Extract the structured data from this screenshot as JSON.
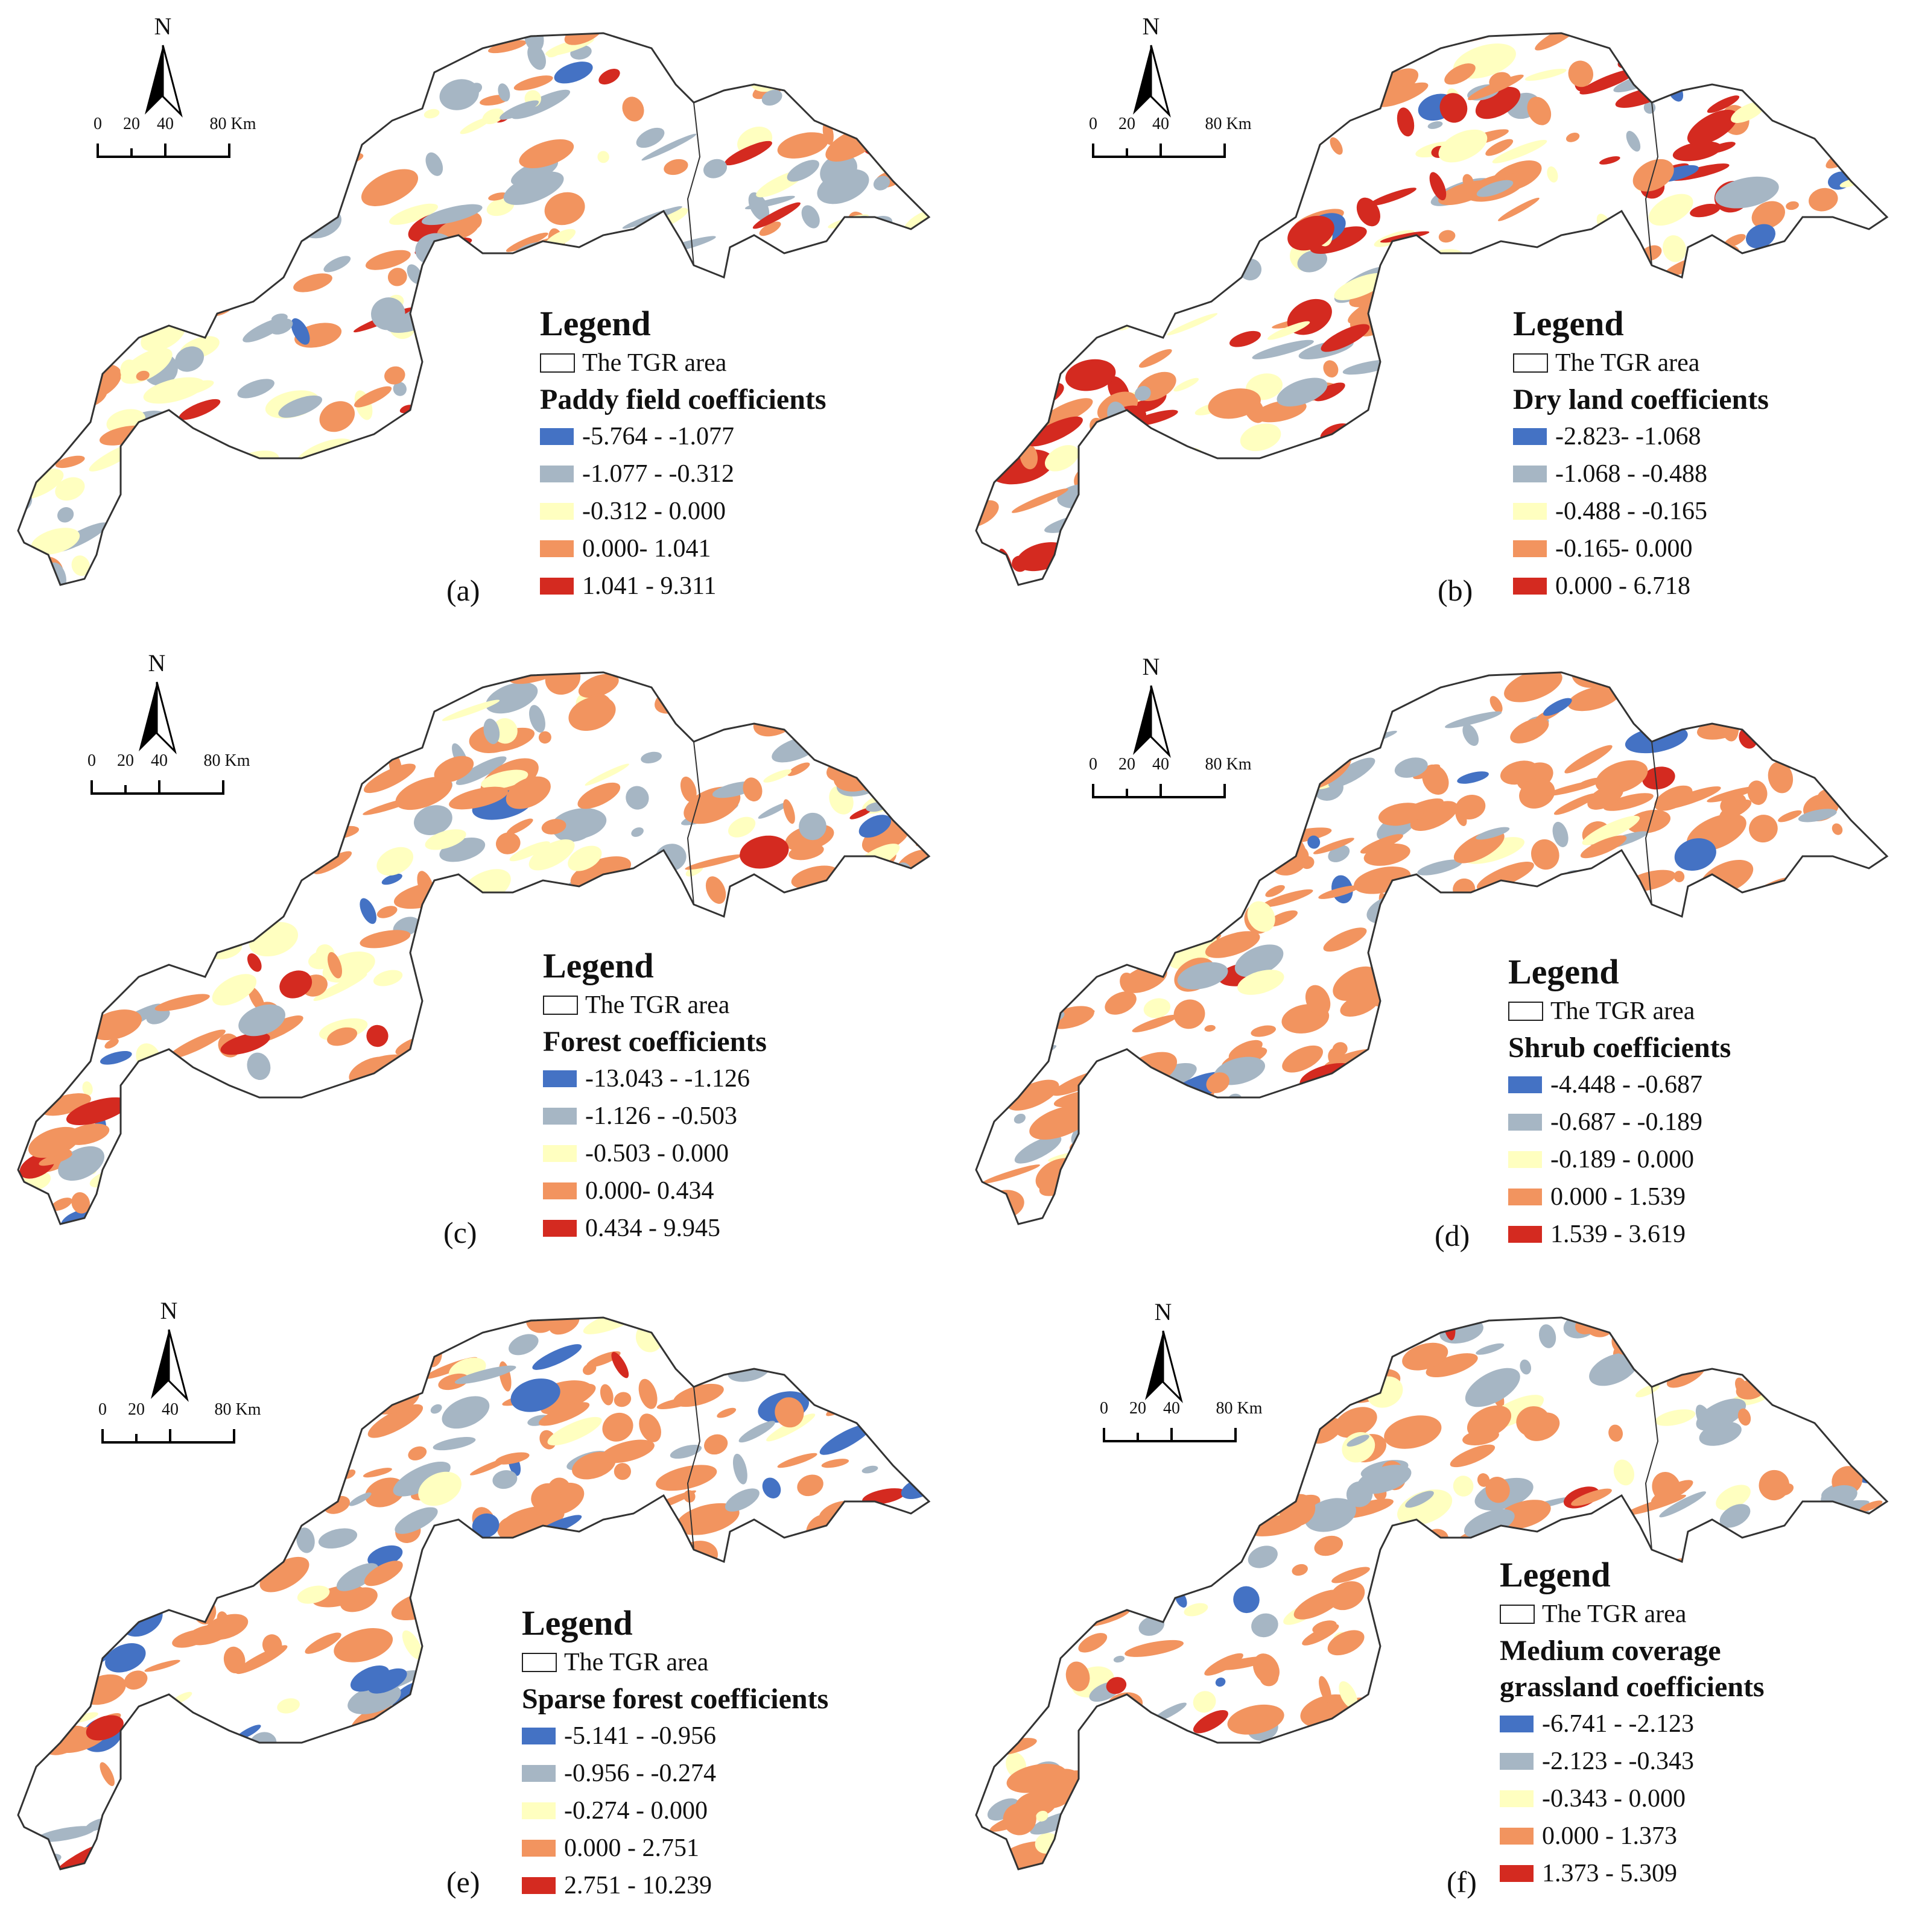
{
  "colors": {
    "class1": "#4472c4",
    "class2": "#a6b6c4",
    "class3": "#ffffc0",
    "class4": "#f2945f",
    "class5": "#d42a20",
    "boundary": "#333333"
  },
  "common": {
    "north_label": "N",
    "scale_ticks": [
      "0",
      "20",
      "40",
      "80 Km"
    ],
    "legend_title": "Legend",
    "tgr_label": "The TGR area"
  },
  "panels": [
    {
      "id": "a",
      "label": "(a)",
      "coef_title": "Paddy field coefficients",
      "classes": [
        "-5.764 - -1.077",
        "-1.077 - -0.312",
        "-0.312 - 0.000",
        "0.000- 1.041",
        "1.041 - 9.311"
      ]
    },
    {
      "id": "b",
      "label": "(b)",
      "coef_title": "Dry land coefficients",
      "classes": [
        "-2.823- -1.068",
        "-1.068 - -0.488",
        "-0.488 - -0.165",
        "-0.165- 0.000",
        "0.000 - 6.718"
      ]
    },
    {
      "id": "c",
      "label": "(c)",
      "coef_title": "Forest coefficients",
      "classes": [
        "-13.043 - -1.126",
        "-1.126 - -0.503",
        "-0.503 - 0.000",
        "0.000- 0.434",
        "0.434 - 9.945"
      ]
    },
    {
      "id": "d",
      "label": "(d)",
      "coef_title": "Shrub coefficients",
      "classes": [
        "-4.448 - -0.687",
        "-0.687 - -0.189",
        "-0.189 - 0.000",
        "0.000 - 1.539",
        "1.539 - 3.619"
      ]
    },
    {
      "id": "e",
      "label": "(e)",
      "coef_title": "Sparse forest coefficients",
      "classes": [
        "-5.141 - -0.956",
        "-0.956 - -0.274",
        "-0.274 - 0.000",
        "0.000 - 2.751",
        "2.751 - 10.239"
      ]
    },
    {
      "id": "f",
      "label": "(f)",
      "coef_title": "Medium coverage grassland coefficients",
      "coef_title_lines": [
        "Medium coverage",
        "grassland coefficients"
      ],
      "classes": [
        "-6.741 - -2.123",
        "-2.123 - -0.343",
        "-0.343 - 0.000",
        "0.000 - 1.373",
        "1.373 - 5.309"
      ]
    }
  ]
}
